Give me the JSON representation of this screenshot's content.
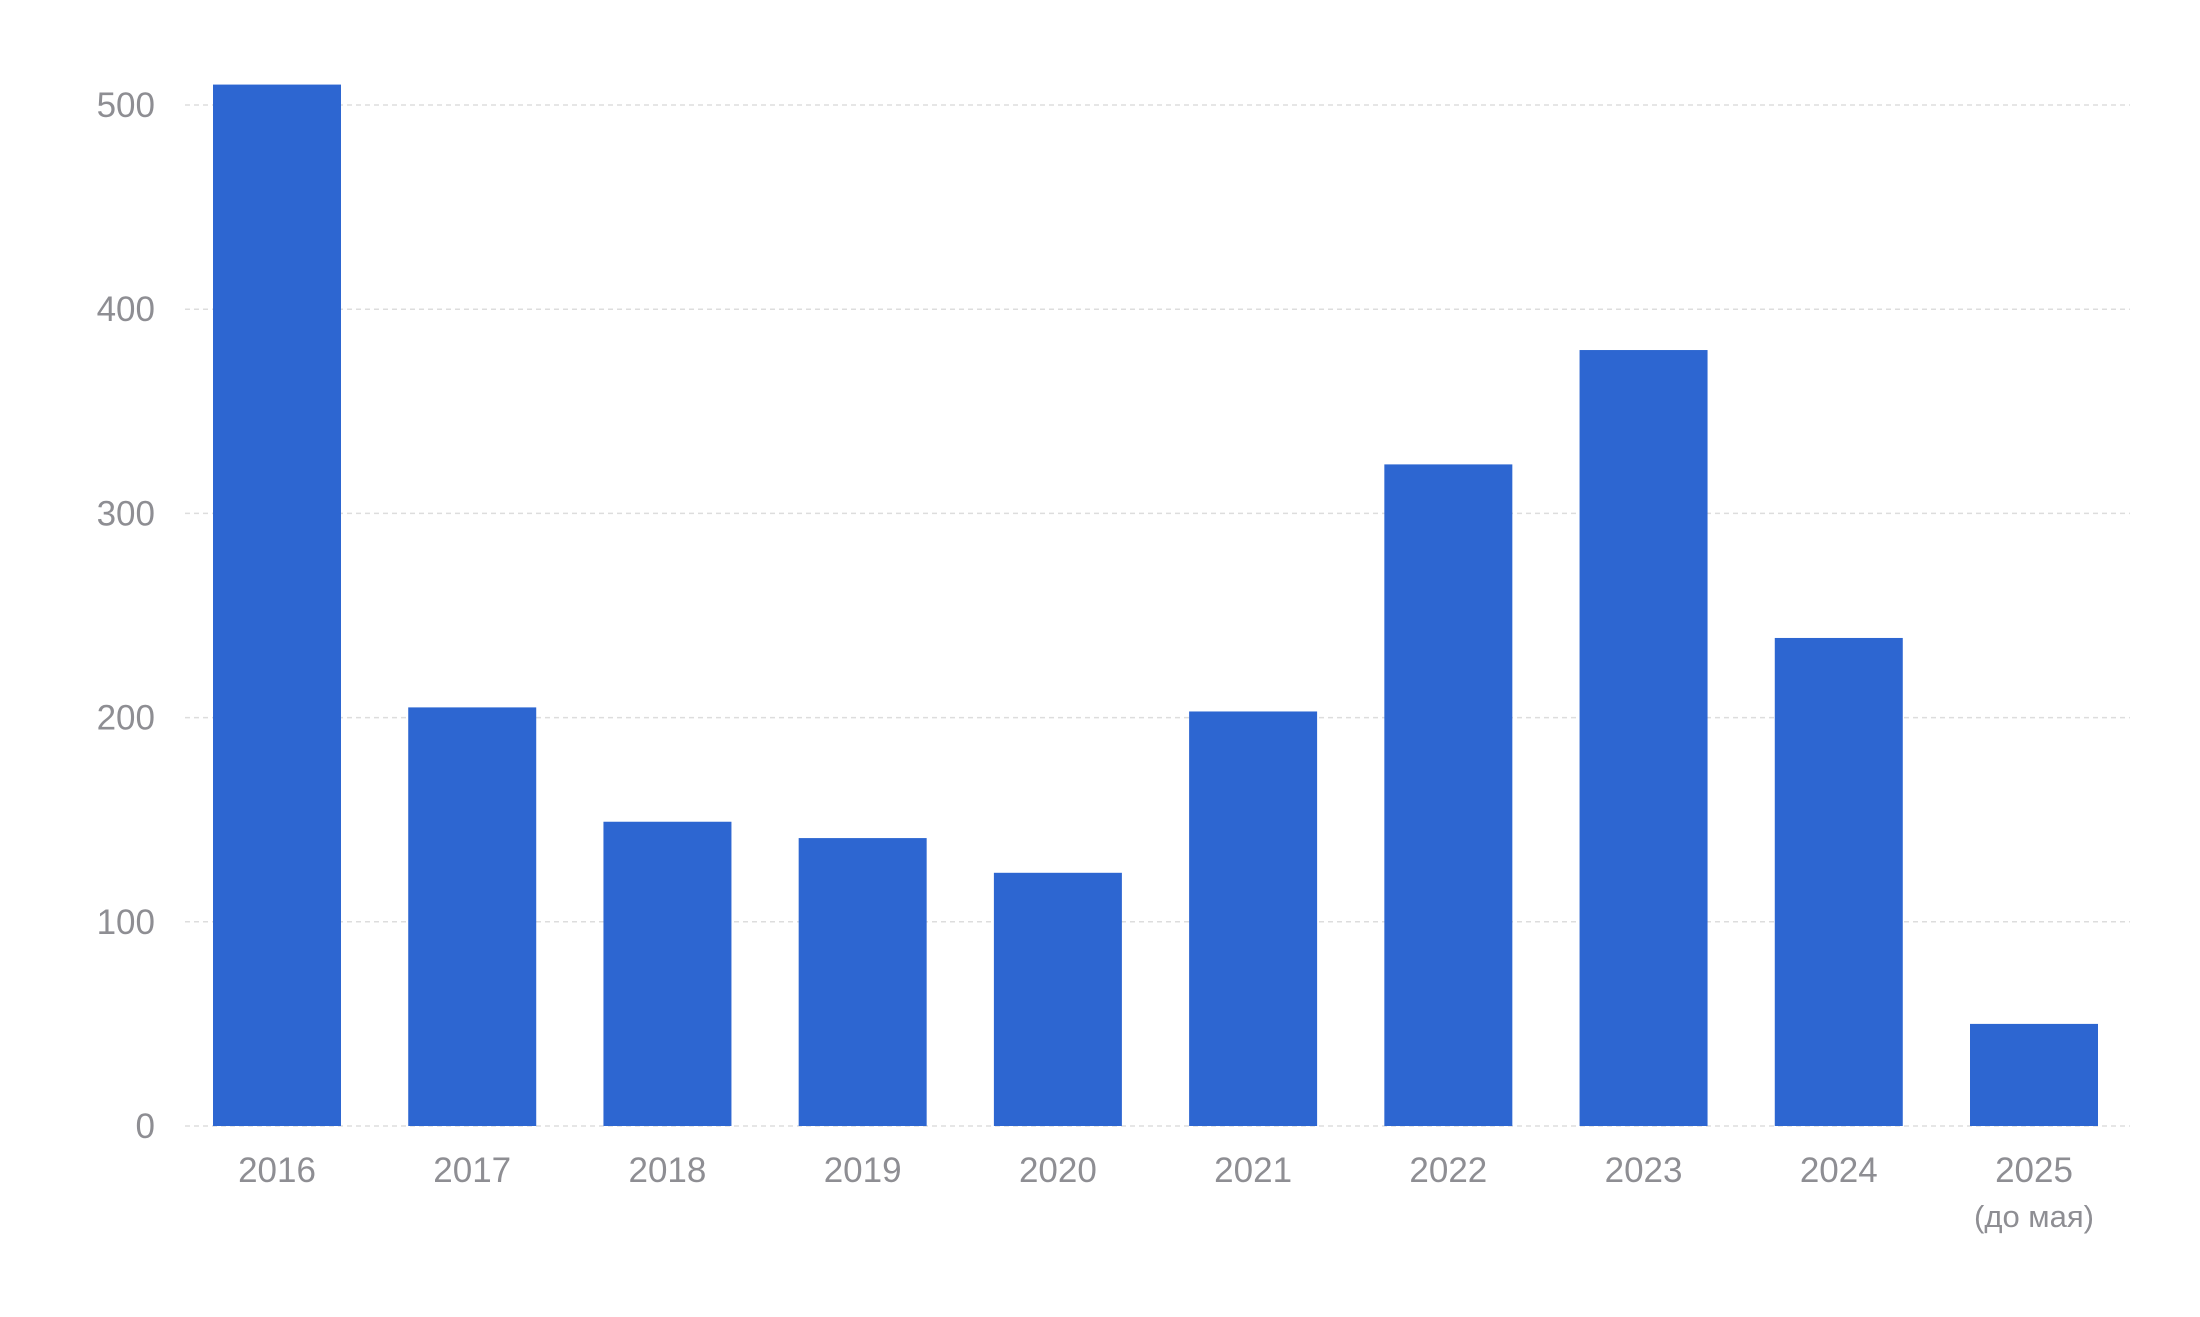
{
  "chart_data": {
    "type": "bar",
    "title": "",
    "xlabel": "",
    "ylabel": "",
    "categories": [
      "2016",
      "2017",
      "2018",
      "2019",
      "2020",
      "2021",
      "2022",
      "2023",
      "2024",
      "2025"
    ],
    "category_sublabels": [
      "",
      "",
      "",
      "",
      "",
      "",
      "",
      "",
      "",
      "(до мая)"
    ],
    "values": [
      510,
      205,
      149,
      141,
      124,
      203,
      324,
      380,
      239,
      50
    ],
    "ylim": [
      0,
      500
    ],
    "yticks": [
      "0",
      "100",
      "200",
      "300",
      "400",
      "500"
    ],
    "grid": true,
    "legend": "none",
    "colors": {
      "bar": "#2D66D1",
      "tick_text": "#8E8E93",
      "grid": "#DDDDDD"
    }
  }
}
